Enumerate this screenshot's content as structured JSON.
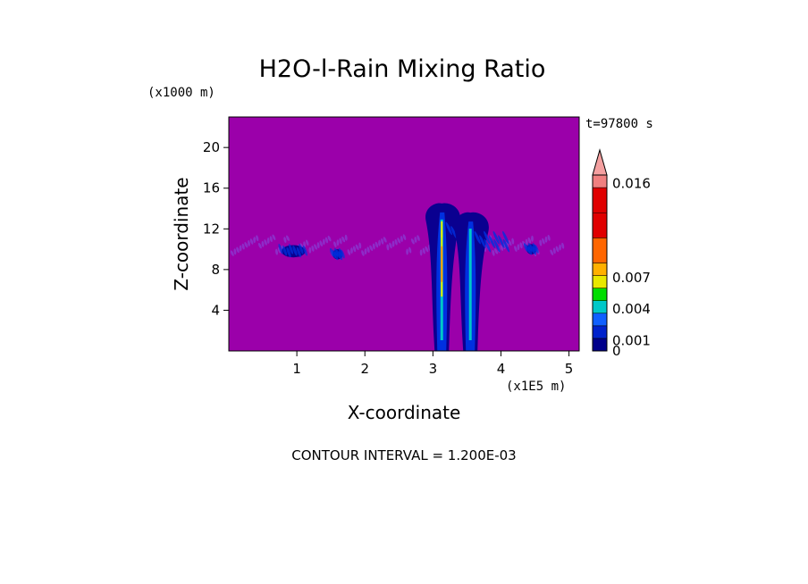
{
  "chart_data": {
    "type": "heatmap",
    "title": "H2O-l-Rain Mixing Ratio",
    "xlabel": "X-coordinate",
    "ylabel": "Z-coordinate",
    "x_scale_label": "(x1E5 m)",
    "y_scale_label": "(x1000 m)",
    "time_label": "t=97800 s",
    "xlim": [
      0,
      5.15
    ],
    "ylim": [
      0,
      23
    ],
    "xticks": [
      {
        "value": 1,
        "label": "1"
      },
      {
        "value": 2,
        "label": "2"
      },
      {
        "value": 3,
        "label": "3"
      },
      {
        "value": 4,
        "label": "4"
      },
      {
        "value": 5,
        "label": "5"
      }
    ],
    "yticks": [
      {
        "value": 4,
        "label": "4"
      },
      {
        "value": 8,
        "label": "8"
      },
      {
        "value": 12,
        "label": "12"
      },
      {
        "value": 16,
        "label": "16"
      },
      {
        "value": 20,
        "label": "20"
      }
    ],
    "background_color": "#9b00aa",
    "colorbar": {
      "levels": [
        0,
        0.0012,
        0.0024,
        0.0036,
        0.0048,
        0.006,
        0.0072,
        0.0084,
        0.0108,
        0.0132,
        0.0156
      ],
      "colors": [
        "#00008b",
        "#0022cc",
        "#1060ff",
        "#00c8c8",
        "#00dd00",
        "#e8e800",
        "#ffb000",
        "#ff6600",
        "#e00000",
        "#e00000",
        "#f08080"
      ],
      "extend_color": "#f4a0a0",
      "labels": [
        {
          "value": 0.016,
          "label": "0.016"
        },
        {
          "value": 0.007,
          "label": "0.007"
        },
        {
          "value": 0.004,
          "label": "0.004"
        },
        {
          "value": 0.001,
          "label": "0.001"
        },
        {
          "value": 0,
          "label": "0"
        }
      ]
    },
    "features": [
      {
        "type": "layer",
        "x_range": [
          0.05,
          4.95
        ],
        "z_range": [
          9.6,
          11.2
        ],
        "max": 0.0002
      },
      {
        "type": "patch",
        "x": 0.95,
        "z": 9.2,
        "width": 0.35,
        "height": 1.2,
        "max": 0.0015
      },
      {
        "type": "patch",
        "x": 1.6,
        "z": 9.0,
        "width": 0.15,
        "height": 1.0,
        "max": 0.0015
      },
      {
        "type": "patch",
        "x": 4.45,
        "z": 9.5,
        "width": 0.15,
        "height": 1.0,
        "max": 0.0015
      },
      {
        "type": "column",
        "x": 3.13,
        "z_range": [
          0,
          14.5
        ],
        "max": 0.007
      },
      {
        "type": "column",
        "x": 3.55,
        "z_range": [
          0,
          13.6
        ],
        "max": 0.004
      }
    ],
    "contour_interval": "CONTOUR INTERVAL = 1.200E-03"
  }
}
